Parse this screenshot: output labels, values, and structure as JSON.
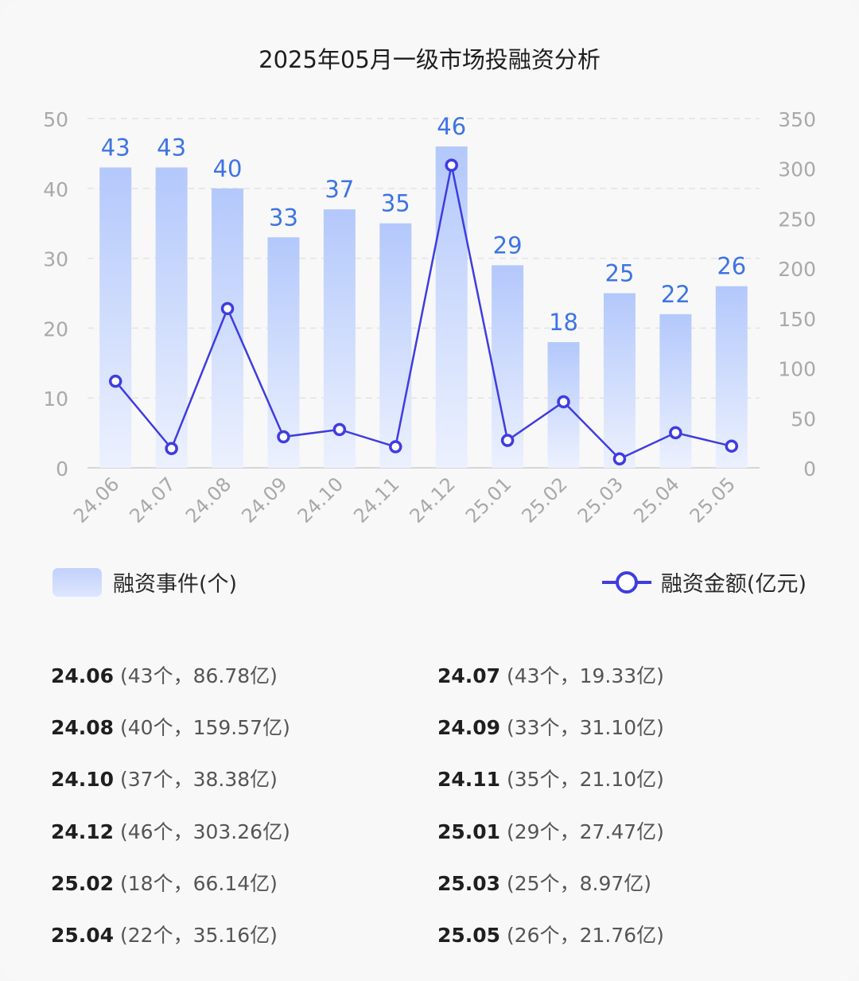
{
  "title": "2025年05月一级市场投融资分析",
  "chart_data": {
    "type": "bar",
    "categories": [
      "24.06",
      "24.07",
      "24.08",
      "24.09",
      "24.10",
      "24.11",
      "24.12",
      "25.01",
      "25.02",
      "25.03",
      "25.04",
      "25.05"
    ],
    "series": [
      {
        "name": "融资事件(个)",
        "type": "bar",
        "axis": "left",
        "values": [
          43,
          43,
          40,
          33,
          37,
          35,
          46,
          29,
          18,
          25,
          22,
          26
        ]
      },
      {
        "name": "融资金额(亿元)",
        "type": "line",
        "axis": "right",
        "values": [
          86.78,
          19.33,
          159.57,
          31.1,
          38.38,
          21.1,
          303.26,
          27.47,
          66.14,
          8.97,
          35.16,
          21.76
        ]
      }
    ],
    "y_left": {
      "ticks": [
        "0",
        "10",
        "20",
        "30",
        "40",
        "50"
      ],
      "range": [
        0,
        50
      ]
    },
    "y_right": {
      "ticks": [
        "0",
        "50",
        "100",
        "150",
        "200",
        "250",
        "300",
        "350"
      ],
      "range": [
        0,
        350
      ]
    },
    "grid": true,
    "legend_position": "bottom",
    "colors": {
      "bar_top": "#b3c8fb",
      "bar_bottom": "#e8eefd",
      "line": "#3f3ce0",
      "bar_label": "#3e74e3",
      "axis_label": "#a9a9a9"
    }
  },
  "legend": {
    "bar_label": "融资事件(个)",
    "line_label": "融资金额(亿元)"
  },
  "details": [
    {
      "month": "24.06",
      "info": "(43个，86.78亿)"
    },
    {
      "month": "24.07",
      "info": "(43个，19.33亿)"
    },
    {
      "month": "24.08",
      "info": "(40个，159.57亿)"
    },
    {
      "month": "24.09",
      "info": "(33个，31.10亿)"
    },
    {
      "month": "24.10",
      "info": "(37个，38.38亿)"
    },
    {
      "month": "24.11",
      "info": "(35个，21.10亿)"
    },
    {
      "month": "24.12",
      "info": "(46个，303.26亿)"
    },
    {
      "month": "25.01",
      "info": "(29个，27.47亿)"
    },
    {
      "month": "25.02",
      "info": "(18个，66.14亿)"
    },
    {
      "month": "25.03",
      "info": "(25个，8.97亿)"
    },
    {
      "month": "25.04",
      "info": "(22个，35.16亿)"
    },
    {
      "month": "25.05",
      "info": "(26个，21.76亿)"
    }
  ]
}
